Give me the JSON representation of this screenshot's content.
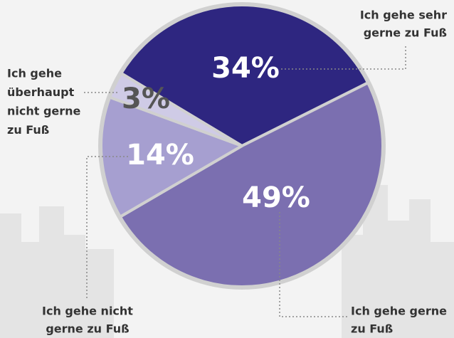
{
  "chart_data": {
    "type": "pie",
    "categories": [
      [
        "Ich gehe sehr",
        "gerne zu Fuß"
      ],
      [
        "Ich gehe gerne",
        "zu Fuß"
      ],
      [
        "Ich gehe nicht",
        "gerne zu Fuß"
      ],
      [
        "Ich gehe",
        "überhaupt",
        "nicht gerne",
        "zu Fuß"
      ]
    ],
    "values": [
      34,
      49,
      14,
      3
    ],
    "value_labels": [
      "34%",
      "49%",
      "14%",
      "3%"
    ],
    "colors": [
      "#2e2680",
      "#7b6fb0",
      "#a69fd0",
      "#cfcbe6"
    ]
  }
}
